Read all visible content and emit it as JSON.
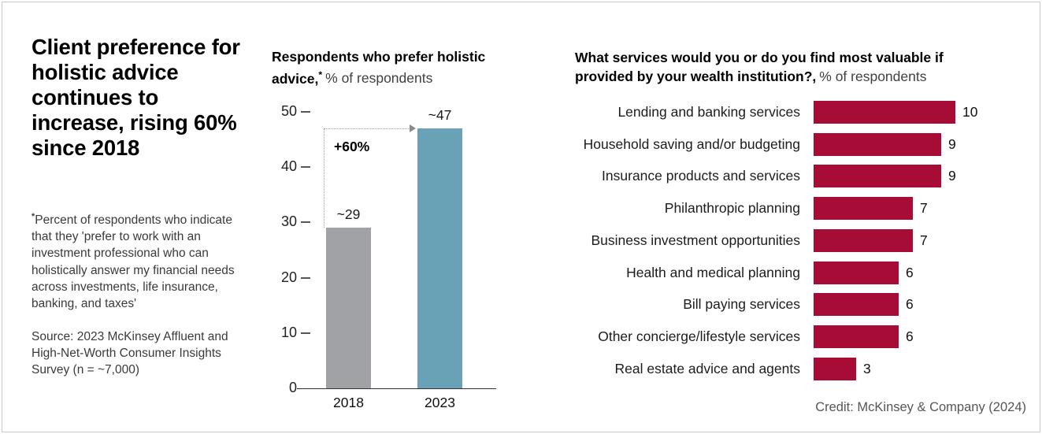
{
  "left": {
    "title": "Client preference for holistic advice continues to increase, rising 60% since 2018",
    "footnote_marker": "*",
    "footnote": "Percent of respondents who indicate that they 'prefer to work with an investment professional who can holistically answer my financial needs across investments, life insurance, banking, and taxes'",
    "source": "Source: 2023 McKinsey Affluent and High-Net-Worth Consumer Insights Survey (n = ~7,000)"
  },
  "credit": "Credit: McKinsey & Company (2024)",
  "colors": {
    "bar_2018": "#a1a2a6",
    "bar_2023": "#69a1b7",
    "bar_red": "#a60c36",
    "arrow_gray": "#9b9b9b"
  },
  "chart_data": [
    {
      "type": "bar",
      "orientation": "vertical",
      "title_bold": "Respondents who prefer holistic advice,",
      "title_marker": "*",
      "title_normal": "% of respondents",
      "categories": [
        "2018",
        "2023"
      ],
      "values": [
        29,
        47
      ],
      "value_labels": [
        "~29",
        "~47"
      ],
      "annotation": "+60%",
      "ylim": [
        0,
        50
      ],
      "yticks": [
        50,
        40,
        30,
        20,
        10,
        0
      ],
      "bar_colors": [
        "#a1a2a6",
        "#69a1b7"
      ],
      "grid": false,
      "legend": "none"
    },
    {
      "type": "bar",
      "orientation": "horizontal",
      "title_bold": "What services would you or do you find most valuable if provided by your wealth institution?,",
      "title_normal": "% of respondents",
      "categories": [
        "Lending and banking services",
        "Household saving and/or budgeting",
        "Insurance products and services",
        "Philanthropic planning",
        "Business investment opportunities",
        "Health and medical planning",
        "Bill paying services",
        "Other concierge/lifestyle services",
        "Real estate advice and agents"
      ],
      "values": [
        10,
        9,
        9,
        7,
        7,
        6,
        6,
        6,
        3
      ],
      "bar_color": "#a60c36",
      "xlim": [
        0,
        10
      ],
      "grid": false,
      "legend": "none"
    }
  ]
}
